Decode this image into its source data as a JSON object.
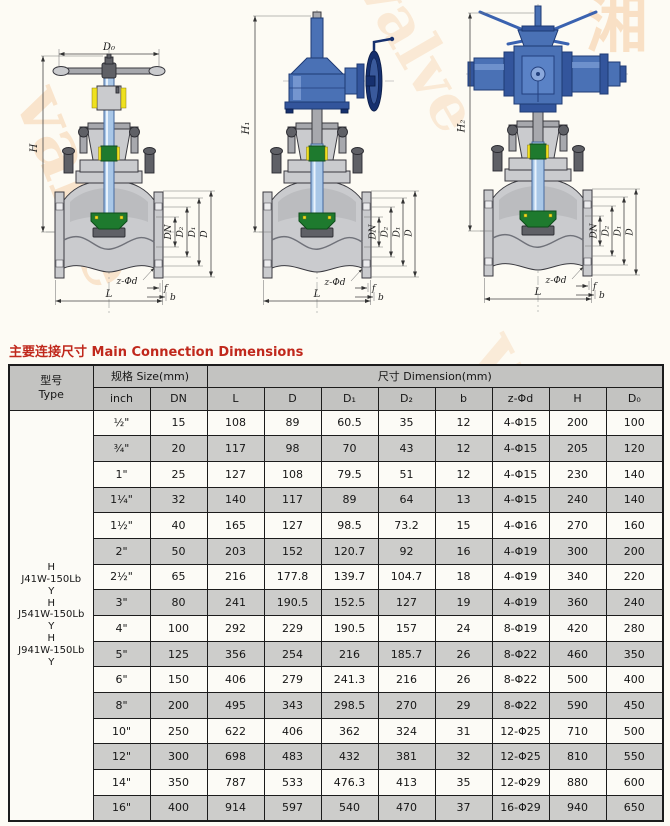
{
  "section_title": "主要连接尺寸 Main Connection Dimensions",
  "drawings": {
    "items": [
      {
        "name": "handwheel-globe-valve",
        "labels": {
          "d0": "D₀",
          "h": "H",
          "dn": "DN",
          "d2": "D₂",
          "d1": "D₁",
          "d": "D",
          "zd": "z-Φd",
          "l": "L",
          "f": "f",
          "b": "b"
        }
      },
      {
        "name": "gear-operated-globe-valve",
        "labels": {
          "h": "H₁",
          "dn": "DN",
          "d2": "D₂",
          "d1": "D₁",
          "d": "D",
          "zd": "z-Φd",
          "l": "L",
          "f": "f",
          "b": "b"
        }
      },
      {
        "name": "electric-globe-valve",
        "labels": {
          "h": "H₂",
          "dn": "DN",
          "d2": "D₂",
          "d1": "D₁",
          "d": "D",
          "zd": "z-Φd",
          "l": "L",
          "f": "f",
          "b": "b"
        }
      }
    ]
  },
  "table": {
    "header": {
      "type_zh": "型号",
      "type_en": "Type",
      "size_group": "规格 Size(mm)",
      "dim_group": "尺寸 Dimension(mm)",
      "columns": [
        "inch",
        "DN",
        "L",
        "D",
        "D₁",
        "D₂",
        "b",
        "z-Φd",
        "H",
        "D₀"
      ]
    },
    "type_lines": [
      "H",
      "J41W-150Lb",
      "Y",
      "H",
      "J541W-150Lb",
      "Y",
      "H",
      "J941W-150Lb",
      "Y"
    ],
    "rows": [
      [
        "½\"",
        "15",
        "108",
        "89",
        "60.5",
        "35",
        "12",
        "4-Φ15",
        "200",
        "100"
      ],
      [
        "¾\"",
        "20",
        "117",
        "98",
        "70",
        "43",
        "12",
        "4-Φ15",
        "205",
        "120"
      ],
      [
        "1\"",
        "25",
        "127",
        "108",
        "79.5",
        "51",
        "12",
        "4-Φ15",
        "230",
        "140"
      ],
      [
        "1¼\"",
        "32",
        "140",
        "117",
        "89",
        "64",
        "13",
        "4-Φ15",
        "240",
        "140"
      ],
      [
        "1½\"",
        "40",
        "165",
        "127",
        "98.5",
        "73.2",
        "15",
        "4-Φ16",
        "270",
        "160"
      ],
      [
        "2\"",
        "50",
        "203",
        "152",
        "120.7",
        "92",
        "16",
        "4-Φ19",
        "300",
        "200"
      ],
      [
        "2½\"",
        "65",
        "216",
        "177.8",
        "139.7",
        "104.7",
        "18",
        "4-Φ19",
        "340",
        "220"
      ],
      [
        "3\"",
        "80",
        "241",
        "190.5",
        "152.5",
        "127",
        "19",
        "4-Φ19",
        "360",
        "240"
      ],
      [
        "4\"",
        "100",
        "292",
        "229",
        "190.5",
        "157",
        "24",
        "8-Φ19",
        "420",
        "280"
      ],
      [
        "5\"",
        "125",
        "356",
        "254",
        "216",
        "185.7",
        "26",
        "8-Φ22",
        "460",
        "350"
      ],
      [
        "6\"",
        "150",
        "406",
        "279",
        "241.3",
        "216",
        "26",
        "8-Φ22",
        "500",
        "400"
      ],
      [
        "8\"",
        "200",
        "495",
        "343",
        "298.5",
        "270",
        "29",
        "8-Φ22",
        "590",
        "450"
      ],
      [
        "10\"",
        "250",
        "622",
        "406",
        "362",
        "324",
        "31",
        "12-Φ25",
        "710",
        "500"
      ],
      [
        "12\"",
        "300",
        "698",
        "483",
        "432",
        "381",
        "32",
        "12-Φ25",
        "810",
        "550"
      ],
      [
        "14\"",
        "350",
        "787",
        "533",
        "476.3",
        "413",
        "35",
        "12-Φ29",
        "880",
        "600"
      ],
      [
        "16\"",
        "400",
        "914",
        "597",
        "540",
        "470",
        "37",
        "16-Φ29",
        "940",
        "650"
      ]
    ]
  },
  "watermark": {
    "texts": [
      "valve",
      "valve",
      "湘",
      "阀",
      "valve",
      "湘阀"
    ]
  }
}
